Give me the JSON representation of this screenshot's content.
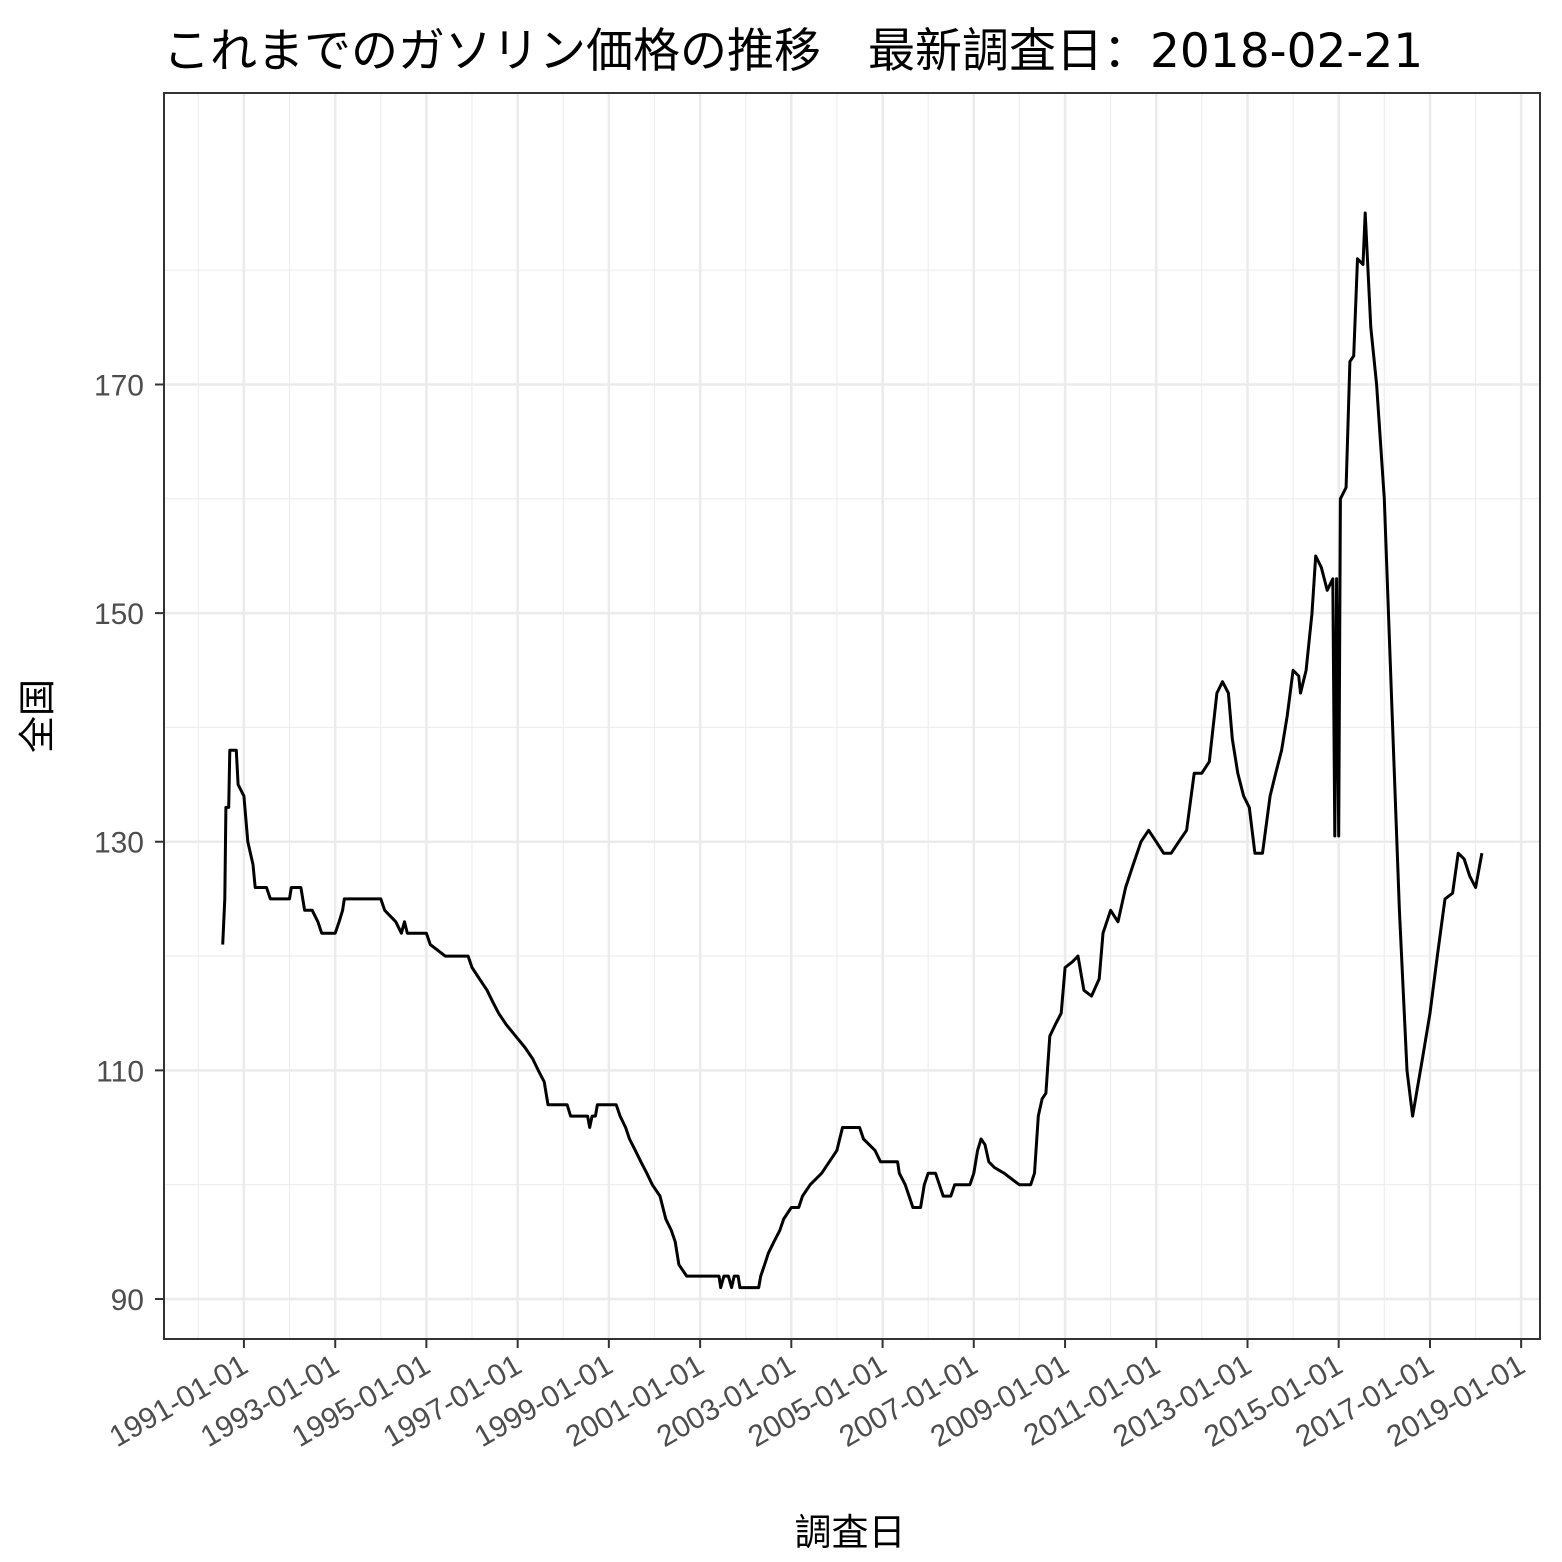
{
  "chart_data": {
    "type": "line",
    "title": "これまでのガソリン価格の推移　最新調査日：2018-02-21",
    "xlabel": "調査日",
    "ylabel": "全国",
    "x_range": [
      "1989-04-01",
      "2019-06-01"
    ],
    "ylim": [
      86.5,
      195.5
    ],
    "x_ticks": [
      "1991-01-01",
      "1993-01-01",
      "1995-01-01",
      "1997-01-01",
      "1999-01-01",
      "2001-01-01",
      "2003-01-01",
      "2005-01-01",
      "2007-01-01",
      "2009-01-01",
      "2011-01-01",
      "2013-01-01",
      "2015-01-01",
      "2017-01-01",
      "2019-01-01"
    ],
    "y_ticks": [
      90,
      110,
      130,
      150,
      170
    ],
    "grid": true,
    "legend": "none",
    "series": [
      {
        "color": "#000000",
        "points": [
          [
            "1990-07-15",
            121
          ],
          [
            "1990-08-01",
            125
          ],
          [
            "1990-08-10",
            133
          ],
          [
            "1990-09-01",
            133
          ],
          [
            "1990-09-10",
            138
          ],
          [
            "1990-11-01",
            138
          ],
          [
            "1990-11-15",
            135
          ],
          [
            "1991-01-01",
            134
          ],
          [
            "1991-02-01",
            130
          ],
          [
            "1991-03-15",
            128
          ],
          [
            "1991-04-01",
            126
          ],
          [
            "1991-07-01",
            126
          ],
          [
            "1991-08-01",
            125
          ],
          [
            "1992-01-01",
            125
          ],
          [
            "1992-01-15",
            126
          ],
          [
            "1992-04-01",
            126
          ],
          [
            "1992-05-01",
            124
          ],
          [
            "1992-07-01",
            124
          ],
          [
            "1992-08-15",
            123
          ],
          [
            "1992-09-15",
            122
          ],
          [
            "1993-01-01",
            122
          ],
          [
            "1993-02-01",
            123
          ],
          [
            "1993-03-01",
            124
          ],
          [
            "1993-03-15",
            125
          ],
          [
            "1994-01-01",
            125
          ],
          [
            "1994-02-01",
            124
          ],
          [
            "1994-05-01",
            123
          ],
          [
            "1994-06-15",
            122
          ],
          [
            "1994-07-10",
            123
          ],
          [
            "1994-08-01",
            122
          ],
          [
            "1995-01-01",
            122
          ],
          [
            "1995-02-01",
            121
          ],
          [
            "1995-06-01",
            120
          ],
          [
            "1995-12-01",
            120
          ],
          [
            "1996-01-01",
            119
          ],
          [
            "1996-03-01",
            118
          ],
          [
            "1996-05-01",
            117
          ],
          [
            "1996-06-15",
            116
          ],
          [
            "1996-08-01",
            115
          ],
          [
            "1996-10-01",
            114
          ],
          [
            "1996-12-15",
            113
          ],
          [
            "1997-03-01",
            112
          ],
          [
            "1997-05-01",
            111
          ],
          [
            "1997-06-15",
            110
          ],
          [
            "1997-08-01",
            109
          ],
          [
            "1997-09-01",
            107
          ],
          [
            "1998-02-01",
            107
          ],
          [
            "1998-03-01",
            106
          ],
          [
            "1998-07-15",
            106
          ],
          [
            "1998-08-01",
            105
          ],
          [
            "1998-08-20",
            106
          ],
          [
            "1998-09-15",
            106
          ],
          [
            "1998-10-01",
            107
          ],
          [
            "1999-03-01",
            107
          ],
          [
            "1999-04-01",
            106
          ],
          [
            "1999-05-15",
            105
          ],
          [
            "1999-06-15",
            104
          ],
          [
            "1999-08-01",
            103
          ],
          [
            "1999-09-15",
            102
          ],
          [
            "1999-11-01",
            101
          ],
          [
            "1999-12-15",
            100
          ],
          [
            "2000-02-15",
            99
          ],
          [
            "2000-04-01",
            97
          ],
          [
            "2000-05-15",
            96
          ],
          [
            "2000-06-15",
            95
          ],
          [
            "2000-07-15",
            93
          ],
          [
            "2000-09-15",
            92
          ],
          [
            "2001-01-01",
            92
          ],
          [
            "2001-06-01",
            92
          ],
          [
            "2001-06-15",
            91
          ],
          [
            "2001-07-10",
            92
          ],
          [
            "2001-08-15",
            92
          ],
          [
            "2001-09-10",
            91
          ],
          [
            "2001-10-01",
            92
          ],
          [
            "2001-11-01",
            92
          ],
          [
            "2001-11-15",
            91
          ],
          [
            "2002-04-15",
            91
          ],
          [
            "2002-05-01",
            92
          ],
          [
            "2002-06-01",
            93
          ],
          [
            "2002-07-01",
            94
          ],
          [
            "2002-08-15",
            95
          ],
          [
            "2002-10-01",
            96
          ],
          [
            "2002-11-01",
            97
          ],
          [
            "2003-01-01",
            98
          ],
          [
            "2003-03-01",
            98
          ],
          [
            "2003-04-01",
            99
          ],
          [
            "2003-06-01",
            100
          ],
          [
            "2003-09-01",
            101
          ],
          [
            "2003-11-01",
            102
          ],
          [
            "2004-01-01",
            103
          ],
          [
            "2004-02-15",
            105
          ],
          [
            "2004-07-01",
            105
          ],
          [
            "2004-08-01",
            104
          ],
          [
            "2004-11-01",
            103
          ],
          [
            "2004-12-15",
            102
          ],
          [
            "2005-05-01",
            102
          ],
          [
            "2005-05-15",
            101
          ],
          [
            "2005-07-01",
            100
          ],
          [
            "2005-08-01",
            99
          ],
          [
            "2005-09-01",
            98
          ],
          [
            "2005-11-01",
            98
          ],
          [
            "2005-12-01",
            100
          ],
          [
            "2006-01-01",
            101
          ],
          [
            "2006-03-01",
            101
          ],
          [
            "2006-04-01",
            100
          ],
          [
            "2006-05-01",
            99
          ],
          [
            "2006-07-01",
            99
          ],
          [
            "2006-08-01",
            100
          ],
          [
            "2006-12-01",
            100
          ],
          [
            "2007-01-01",
            101
          ],
          [
            "2007-02-01",
            103
          ],
          [
            "2007-03-01",
            104
          ],
          [
            "2007-04-01",
            103.5
          ],
          [
            "2007-05-01",
            102
          ],
          [
            "2007-06-15",
            101.5
          ],
          [
            "2007-09-01",
            101
          ],
          [
            "2007-11-01",
            100.5
          ],
          [
            "2008-01-01",
            100
          ],
          [
            "2008-04-01",
            100
          ],
          [
            "2008-05-01",
            101
          ],
          [
            "2008-06-01",
            106
          ],
          [
            "2008-07-01",
            107.5
          ],
          [
            "2008-08-01",
            108
          ],
          [
            "2008-09-01",
            113
          ],
          [
            "2008-10-15",
            114
          ],
          [
            "2008-12-01",
            115
          ],
          [
            "2009-01-01",
            119
          ],
          [
            "2009-03-01",
            119.5
          ],
          [
            "2009-04-15",
            120
          ],
          [
            "2009-06-01",
            117
          ],
          [
            "2009-08-01",
            116.5
          ],
          [
            "2009-10-01",
            118
          ],
          [
            "2009-11-01",
            122
          ],
          [
            "2010-01-01",
            124
          ],
          [
            "2010-03-01",
            123
          ],
          [
            "2010-05-01",
            126
          ],
          [
            "2010-07-01",
            128
          ],
          [
            "2010-09-01",
            130
          ],
          [
            "2010-11-01",
            131
          ],
          [
            "2011-01-01",
            130
          ],
          [
            "2011-03-01",
            129
          ],
          [
            "2011-05-01",
            129
          ],
          [
            "2011-07-01",
            130
          ],
          [
            "2011-09-01",
            131
          ],
          [
            "2011-11-01",
            136
          ],
          [
            "2012-01-01",
            136
          ],
          [
            "2012-03-01",
            137
          ],
          [
            "2012-05-01",
            143
          ],
          [
            "2012-06-15",
            144
          ],
          [
            "2012-08-01",
            143
          ],
          [
            "2012-09-01",
            139
          ],
          [
            "2012-10-15",
            136
          ],
          [
            "2012-12-01",
            134
          ],
          [
            "2013-01-15",
            133
          ],
          [
            "2013-03-01",
            129
          ],
          [
            "2013-05-01",
            129
          ],
          [
            "2013-07-01",
            134
          ],
          [
            "2013-08-15",
            136
          ],
          [
            "2013-10-01",
            138
          ],
          [
            "2013-11-15",
            141
          ],
          [
            "2014-01-01",
            145
          ],
          [
            "2014-02-15",
            144.5
          ],
          [
            "2014-03-01",
            143
          ],
          [
            "2014-04-15",
            145
          ],
          [
            "2014-06-01",
            150
          ],
          [
            "2014-07-01",
            155
          ],
          [
            "2014-08-15",
            154
          ],
          [
            "2014-10-01",
            152
          ],
          [
            "2014-11-15",
            153
          ],
          [
            "2014-12-01",
            130.5
          ],
          [
            "2014-12-15",
            153
          ],
          [
            "2015-01-01",
            130.5
          ],
          [
            "2015-01-15",
            160
          ],
          [
            "2015-03-01",
            161
          ],
          [
            "2015-04-01",
            172
          ],
          [
            "2015-05-01",
            172.5
          ],
          [
            "2015-06-01",
            181
          ],
          [
            "2015-07-15",
            180.5
          ],
          [
            "2015-08-01",
            185
          ],
          [
            "2015-09-15",
            175
          ],
          [
            "2015-11-01",
            170
          ],
          [
            "2016-01-01",
            160
          ],
          [
            "2016-03-01",
            142
          ],
          [
            "2016-05-01",
            124
          ],
          [
            "2016-07-01",
            110
          ],
          [
            "2016-08-15",
            106
          ],
          [
            "2016-09-15",
            108
          ],
          [
            "2016-11-01",
            111
          ],
          [
            "2017-01-01",
            115
          ],
          [
            "2017-03-01",
            120
          ],
          [
            "2017-05-01",
            125
          ],
          [
            "2017-07-01",
            125.5
          ],
          [
            "2017-08-15",
            129
          ],
          [
            "2017-10-01",
            128.5
          ],
          [
            "2017-11-15",
            127
          ],
          [
            "2018-01-01",
            126
          ],
          [
            "2018-02-21",
            129
          ]
        ]
      }
    ]
  }
}
